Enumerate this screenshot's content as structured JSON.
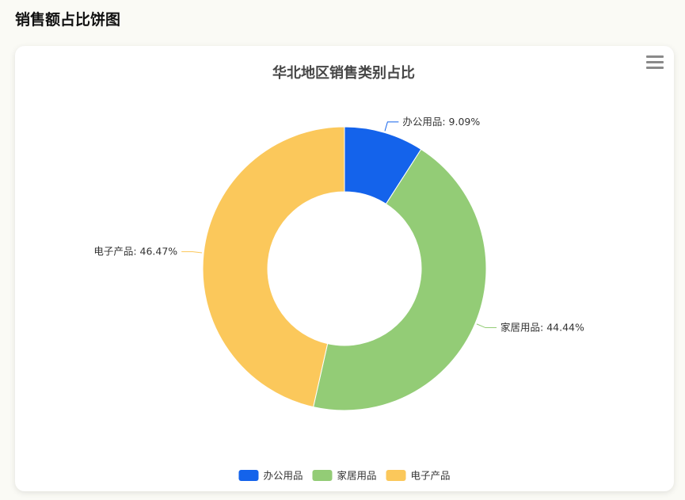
{
  "page": {
    "heading": "销售额占比饼图"
  },
  "toolbar": {
    "menu_icon": "menu-icon"
  },
  "chart_data": {
    "type": "pie",
    "donut": true,
    "title": "华北地区销售类别占比",
    "categories": [
      "办公用品",
      "家居用品",
      "电子产品"
    ],
    "values": [
      9.09,
      44.44,
      46.47
    ],
    "value_unit": "%",
    "labels": [
      "办公用品: 9.09%",
      "家居用品: 44.44%",
      "电子产品: 46.47%"
    ],
    "colors": [
      "#1463eb",
      "#93cc76",
      "#fbc85b"
    ],
    "legend": {
      "position": "bottom-center",
      "items": [
        "办公用品",
        "家居用品",
        "电子产品"
      ]
    }
  }
}
